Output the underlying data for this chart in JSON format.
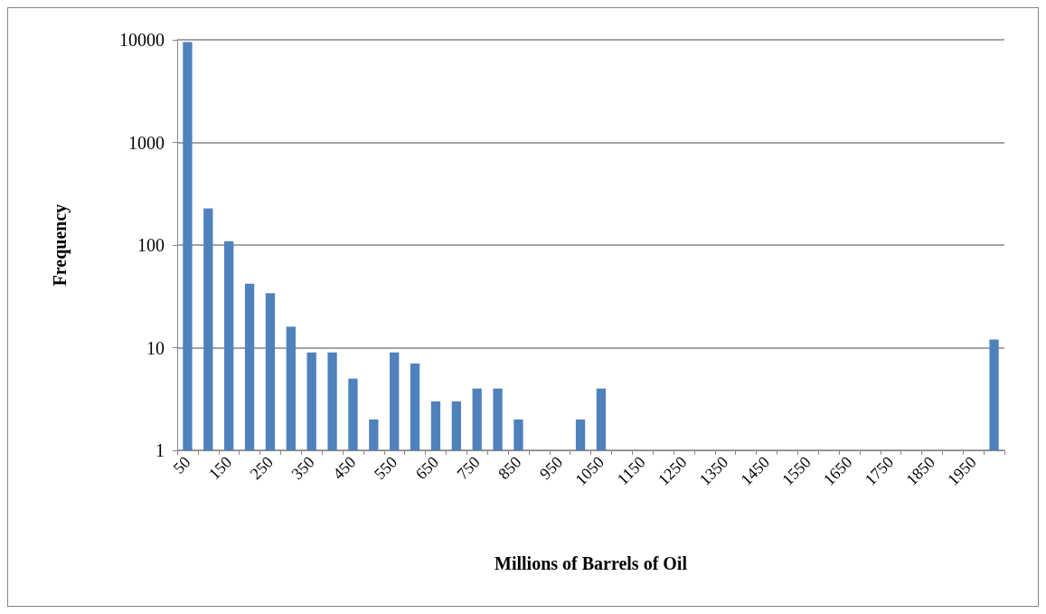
{
  "chart_data": {
    "type": "bar",
    "xlabel": "Millions of Barrels of Oil",
    "ylabel": "Frequency",
    "categories": [
      "50",
      null,
      "150",
      null,
      "250",
      null,
      "350",
      null,
      "450",
      null,
      "550",
      null,
      "650",
      null,
      "750",
      null,
      "850",
      null,
      "950",
      null,
      "1050",
      null,
      "1150",
      null,
      "1250",
      null,
      "1350",
      null,
      "1450",
      null,
      "1550",
      null,
      "1650",
      null,
      "1750",
      null,
      "1850",
      null,
      "1950",
      null
    ],
    "values": [
      9500,
      227,
      109,
      42,
      34,
      16,
      9,
      9,
      5,
      2,
      9,
      7,
      3,
      3,
      4,
      4,
      2,
      null,
      null,
      2,
      4,
      null,
      null,
      null,
      null,
      null,
      null,
      null,
      null,
      null,
      null,
      null,
      null,
      null,
      null,
      null,
      null,
      null,
      null,
      12
    ],
    "color": "#4f81bd",
    "log": "y",
    "ylim": [
      1,
      10000
    ],
    "yticks": [
      1,
      10,
      100,
      1000,
      10000
    ],
    "grid": "y"
  }
}
